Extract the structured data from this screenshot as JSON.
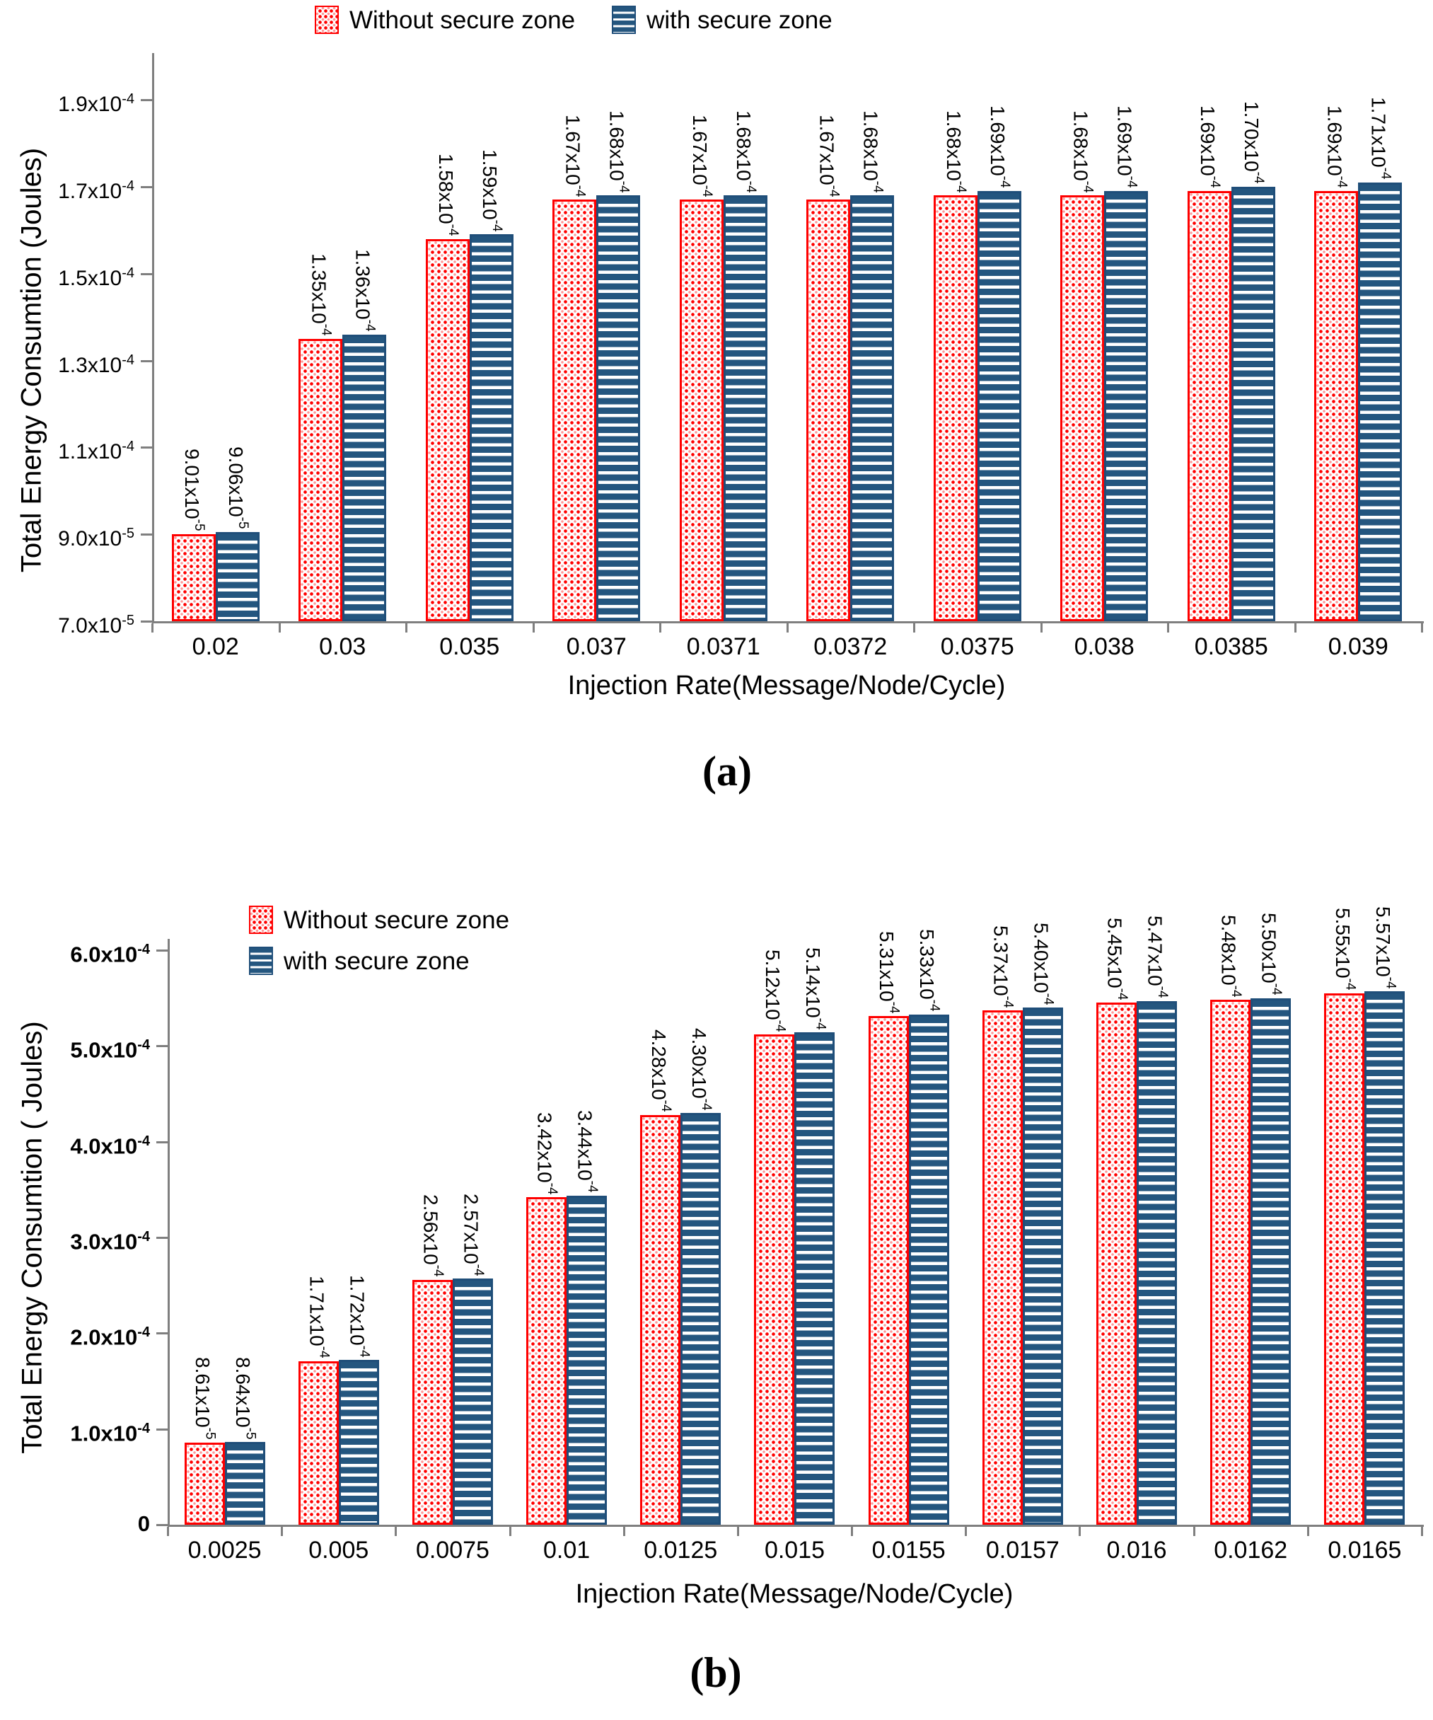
{
  "legend": {
    "series1_label": "Without secure zone",
    "series2_label": "with secure zone",
    "series1_color": "#ff0000",
    "series2_color": "#1f4e79"
  },
  "chart_data": [
    {
      "type": "bar",
      "caption": "(a)",
      "xlabel": "Injection Rate(Message/Node/Cycle)",
      "ylabel": "Total Energy Consumtion (Joules)",
      "ylim": [
        7e-05,
        0.00019
      ],
      "grid": false,
      "legend_position": "top-center-horizontal",
      "yticks": [
        {
          "v": 0.00019,
          "label": "1.9x10^-4"
        },
        {
          "v": 0.00017,
          "label": "1.7x10^-4"
        },
        {
          "v": 0.00015,
          "label": "1.5x10^-4"
        },
        {
          "v": 0.00013,
          "label": "1.3x10^-4"
        },
        {
          "v": 0.00011,
          "label": "1.1x10^-4"
        },
        {
          "v": 9e-05,
          "label": "9.0x10^-5"
        },
        {
          "v": 7e-05,
          "label": "7.0x10^-5"
        }
      ],
      "categories": [
        "0.02",
        "0.03",
        "0.035",
        "0.037",
        "0.0371",
        "0.0372",
        "0.0375",
        "0.038",
        "0.0385",
        "0.039"
      ],
      "series": [
        {
          "name": "Without secure zone",
          "pattern": "red-dots",
          "color": "#ff0000",
          "values": [
            9.01e-05,
            0.000135,
            0.000158,
            0.000167,
            0.000167,
            0.000167,
            0.000168,
            0.000168,
            0.000169,
            0.000169
          ],
          "labels": [
            "9.01x10^-5",
            "1.35x10^-4",
            "1.58x10^-4",
            "1.67x10^-4",
            "1.67x10^-4",
            "1.67x10^-4",
            "1.68x10^-4",
            "1.68x10^-4",
            "1.69x10^-4",
            "1.69x10^-4"
          ]
        },
        {
          "name": "with secure zone",
          "pattern": "blue-stripes",
          "color": "#1f4e79",
          "values": [
            9.06e-05,
            0.000136,
            0.000159,
            0.000168,
            0.000168,
            0.000168,
            0.000169,
            0.000169,
            0.00017,
            0.000171
          ],
          "labels": [
            "9.06x10^-5",
            "1.36x10^-4",
            "1.59x10^-4",
            "1.68x10^-4",
            "1.68x10^-4",
            "1.68x10^-4",
            "1.69x10^-4",
            "1.69x10^-4",
            "1.70x10^-4",
            "1.71x10^-4"
          ]
        }
      ]
    },
    {
      "type": "bar",
      "caption": "(b)",
      "xlabel": "Injection Rate(Message/Node/Cycle)",
      "ylabel": "Total Energy Consumtion ( Joules)",
      "ylim": [
        0,
        0.0006
      ],
      "grid": false,
      "legend_position": "top-left-vertical",
      "yticks": [
        {
          "v": 0.0006,
          "label": "6.0x10^-4"
        },
        {
          "v": 0.0005,
          "label": "5.0x10^-4"
        },
        {
          "v": 0.0004,
          "label": "4.0x10^-4"
        },
        {
          "v": 0.0003,
          "label": "3.0x10^-4"
        },
        {
          "v": 0.0002,
          "label": "2.0x10^-4"
        },
        {
          "v": 0.0001,
          "label": "1.0x10^-4"
        },
        {
          "v": 0,
          "label": "0"
        }
      ],
      "categories": [
        "0.0025",
        "0.005",
        "0.0075",
        "0.01",
        "0.0125",
        "0.015",
        "0.0155",
        "0.0157",
        "0.016",
        "0.0162",
        "0.0165"
      ],
      "series": [
        {
          "name": "Without secure zone",
          "pattern": "red-dots",
          "color": "#ff0000",
          "values": [
            8.61e-05,
            0.000171,
            0.000256,
            0.000342,
            0.000428,
            0.000512,
            0.000531,
            0.000537,
            0.000545,
            0.000548,
            0.000555
          ],
          "labels": [
            "8.61x10^-5",
            "1.71x10^-4",
            "2.56x10^-4",
            "3.42x10^-4",
            "4.28x10^-4",
            "5.12x10^-4",
            "5.31x10^-4",
            "5.37x10^-4",
            "5.45x10^-4",
            "5.48x10^-4",
            "5.55x10^-4"
          ]
        },
        {
          "name": "with secure zone",
          "pattern": "blue-stripes",
          "color": "#1f4e79",
          "values": [
            8.64e-05,
            0.000172,
            0.000257,
            0.000344,
            0.00043,
            0.000514,
            0.000533,
            0.00054,
            0.000547,
            0.00055,
            0.000557
          ],
          "labels": [
            "8.64x10^-5",
            "1.72x10^-4",
            "2.57x10^-4",
            "3.44x10^-4",
            "4.30x10^-4",
            "5.14x10^-4",
            "5.33x10^-4",
            "5.40x10^-4",
            "5.47x10^-4",
            "5.50x10^-4",
            "5.57x10^-4"
          ]
        }
      ]
    }
  ]
}
